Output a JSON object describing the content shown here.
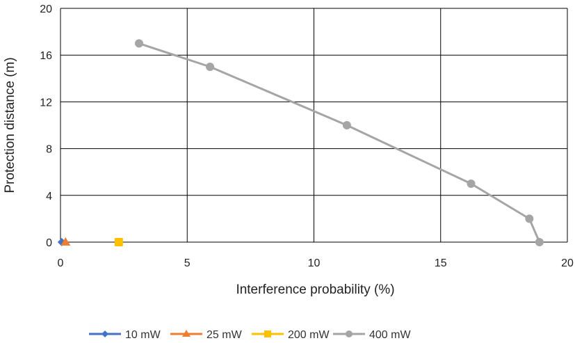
{
  "chart_data": {
    "type": "scatter",
    "xlabel": "Interference probability (%)",
    "ylabel": "Protection distance (m)",
    "xlim": [
      0,
      20
    ],
    "ylim": [
      0,
      20
    ],
    "xticks": [
      0,
      5,
      10,
      15,
      20
    ],
    "yticks": [
      0,
      4,
      8,
      12,
      16,
      20
    ],
    "grid": true,
    "legend_position": "bottom",
    "series": [
      {
        "name": "10 mW",
        "marker": "diamond",
        "color": "#4472C4",
        "line": false,
        "points": [
          {
            "x": 0.05,
            "y": 0
          }
        ]
      },
      {
        "name": "25 mW",
        "marker": "triangle",
        "color": "#ED7D31",
        "line": false,
        "points": [
          {
            "x": 0.2,
            "y": 0
          }
        ]
      },
      {
        "name": "200 mW",
        "marker": "square",
        "color": "#FFC000",
        "line": false,
        "points": [
          {
            "x": 2.3,
            "y": 0
          }
        ]
      },
      {
        "name": "400 mW",
        "marker": "circle",
        "color": "#A5A5A5",
        "line": true,
        "points": [
          {
            "x": 3.1,
            "y": 17
          },
          {
            "x": 5.9,
            "y": 15
          },
          {
            "x": 11.3,
            "y": 10
          },
          {
            "x": 16.2,
            "y": 5
          },
          {
            "x": 18.5,
            "y": 2
          },
          {
            "x": 18.9,
            "y": 0
          }
        ]
      }
    ]
  }
}
